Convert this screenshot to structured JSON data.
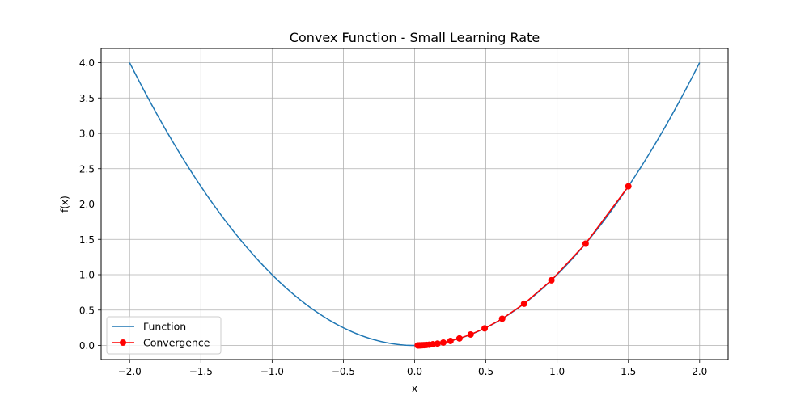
{
  "chart_data": {
    "type": "line",
    "title": "Convex Function - Small Learning Rate",
    "xlabel": "x",
    "ylabel": "f(x)",
    "xlim": [
      -2.2,
      2.2
    ],
    "ylim": [
      -0.2,
      4.2
    ],
    "grid": true,
    "legend_position": "lower-left",
    "x_ticks": [
      -2.0,
      -1.5,
      -1.0,
      -0.5,
      0.0,
      0.5,
      1.0,
      1.5,
      2.0
    ],
    "x_tick_labels": [
      "−2.0",
      "−1.5",
      "−1.0",
      "−0.5",
      "0.0",
      "0.5",
      "1.0",
      "1.5",
      "2.0"
    ],
    "y_ticks": [
      0.0,
      0.5,
      1.0,
      1.5,
      2.0,
      2.5,
      3.0,
      3.5,
      4.0
    ],
    "y_tick_labels": [
      "0.0",
      "0.5",
      "1.0",
      "1.5",
      "2.0",
      "2.5",
      "3.0",
      "3.5",
      "4.0"
    ],
    "series": [
      {
        "name": "Function",
        "color": "#1f77b4",
        "marker": "none",
        "x_range": [
          -2.0,
          2.0
        ],
        "expression": "x^2"
      },
      {
        "name": "Convergence",
        "color": "#ff0000",
        "marker": "circle",
        "points": [
          [
            1.5,
            2.25
          ],
          [
            1.2,
            1.44
          ],
          [
            0.96,
            0.9216
          ],
          [
            0.768,
            0.5898
          ],
          [
            0.6144,
            0.3775
          ],
          [
            0.4915,
            0.2416
          ],
          [
            0.3932,
            0.1546
          ],
          [
            0.3146,
            0.099
          ],
          [
            0.2517,
            0.0633
          ],
          [
            0.2013,
            0.0405
          ],
          [
            0.1611,
            0.0259
          ],
          [
            0.1288,
            0.0166
          ],
          [
            0.1031,
            0.0106
          ],
          [
            0.0825,
            0.0068
          ],
          [
            0.066,
            0.0044
          ],
          [
            0.0528,
            0.0028
          ],
          [
            0.0422,
            0.0018
          ],
          [
            0.0338,
            0.0011
          ],
          [
            0.027,
            0.0007
          ],
          [
            0.0216,
            0.0005
          ]
        ]
      }
    ]
  }
}
